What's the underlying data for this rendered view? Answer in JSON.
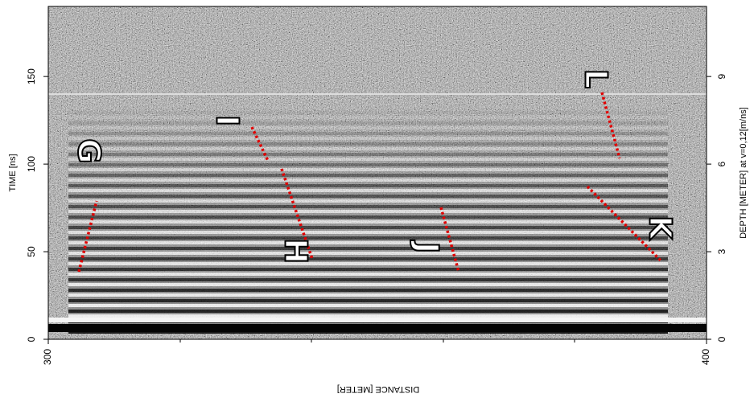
{
  "chart_data": {
    "type": "radargram",
    "xlabel": "DISTANCE [METER]",
    "ylabel": "TIME [ns]",
    "y2label": "DEPTH [METER] at v=0,12[m/ns]",
    "xlim": [
      300,
      400
    ],
    "xticks": [
      300,
      400
    ],
    "ylim": [
      0,
      190
    ],
    "yticks": [
      0,
      50,
      100,
      150
    ],
    "y2lim": [
      0,
      11.4
    ],
    "y2ticks": [
      0,
      3,
      6,
      9
    ],
    "annotations": [
      "G",
      "H",
      "I",
      "J",
      "K",
      "L"
    ]
  }
}
